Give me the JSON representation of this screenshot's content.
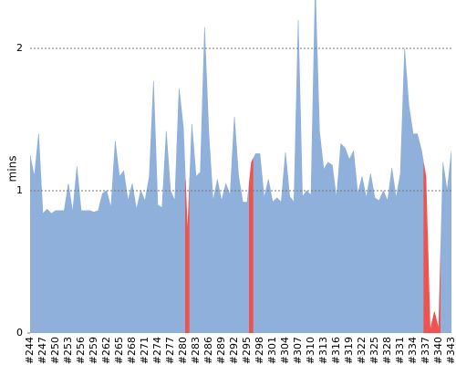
{
  "chart_data": {
    "type": "area",
    "y_label": "mins",
    "categories": [
      "#244",
      null,
      null,
      "#247",
      null,
      null,
      "#250",
      null,
      null,
      "#253",
      null,
      null,
      "#256",
      null,
      null,
      "#259",
      null,
      null,
      "#262",
      null,
      null,
      "#265",
      null,
      null,
      "#268",
      null,
      null,
      "#271",
      null,
      null,
      "#274",
      null,
      null,
      "#277",
      null,
      null,
      "#280",
      null,
      null,
      "#283",
      null,
      null,
      "#286",
      null,
      null,
      "#289",
      null,
      null,
      "#292",
      null,
      null,
      "#295",
      null,
      null,
      "#298",
      null,
      null,
      "#301",
      null,
      null,
      "#304",
      null,
      null,
      "#307",
      null,
      null,
      "#310",
      null,
      null,
      "#313",
      null,
      null,
      "#316",
      null,
      null,
      "#319",
      null,
      null,
      "#322",
      null,
      null,
      "#325",
      null,
      null,
      "#328",
      null,
      null,
      "#331",
      null,
      null,
      "#334",
      null,
      null,
      "#337",
      null,
      null,
      "#340",
      null,
      null,
      "#343"
    ],
    "values": [
      1.25,
      1.1,
      1.4,
      0.84,
      0.87,
      0.84,
      0.86,
      0.86,
      0.86,
      1.05,
      0.85,
      1.17,
      0.86,
      0.86,
      0.86,
      0.85,
      0.86,
      0.98,
      1.0,
      0.88,
      1.35,
      1.1,
      1.14,
      0.93,
      1.05,
      0.87,
      1.0,
      0.93,
      1.1,
      1.77,
      0.9,
      0.88,
      1.42,
      1.0,
      0.93,
      1.72,
      1.45,
      0.7,
      1.47,
      1.1,
      1.13,
      2.15,
      1.4,
      0.93,
      1.08,
      0.93,
      1.05,
      0.97,
      1.52,
      1.1,
      0.92,
      0.92,
      1.2,
      1.26,
      1.26,
      0.95,
      1.08,
      0.92,
      0.95,
      0.92,
      1.27,
      0.96,
      0.92,
      2.2,
      0.96,
      1.0,
      0.97,
      2.45,
      1.42,
      1.15,
      1.2,
      1.18,
      0.95,
      1.33,
      1.3,
      1.22,
      1.28,
      0.98,
      1.1,
      0.95,
      1.12,
      0.95,
      0.93,
      1.0,
      0.93,
      1.16,
      0.95,
      1.12,
      2.0,
      1.6,
      1.4,
      1.4,
      1.28,
      1.1,
      0.02,
      0.15,
      0.03,
      1.2,
      1.0,
      1.28
    ],
    "colors": [
      "#8fb0da",
      "#8fb0da",
      "#8fb0da",
      "#8fb0da",
      "#8fb0da",
      "#8fb0da",
      "#8fb0da",
      "#8fb0da",
      "#8fb0da",
      "#8fb0da",
      "#8fb0da",
      "#8fb0da",
      "#8fb0da",
      "#8fb0da",
      "#8fb0da",
      "#8fb0da",
      "#8fb0da",
      "#8fb0da",
      "#8fb0da",
      "#8fb0da",
      "#8fb0da",
      "#8fb0da",
      "#8fb0da",
      "#8fb0da",
      "#8fb0da",
      "#8fb0da",
      "#8fb0da",
      "#8fb0da",
      "#8fb0da",
      "#8fb0da",
      "#8fb0da",
      "#8fb0da",
      "#8fb0da",
      "#8fb0da",
      "#8fb0da",
      "#8fb0da",
      "#8fb0da",
      "#ef5350",
      "#8fb0da",
      "#8fb0da",
      "#8fb0da",
      "#8fb0da",
      "#8fb0da",
      "#8fb0da",
      "#8fb0da",
      "#8fb0da",
      "#8fb0da",
      "#8fb0da",
      "#8fb0da",
      "#8fb0da",
      "#8fb0da",
      "#8fb0da",
      "#ef5350",
      "#8fb0da",
      "#8fb0da",
      "#8fb0da",
      "#8fb0da",
      "#8fb0da",
      "#8fb0da",
      "#8fb0da",
      "#8fb0da",
      "#8fb0da",
      "#8fb0da",
      "#8fb0da",
      "#8fb0da",
      "#8fb0da",
      "#8fb0da",
      "#8fb0da",
      "#8fb0da",
      "#8fb0da",
      "#8fb0da",
      "#8fb0da",
      "#8fb0da",
      "#8fb0da",
      "#8fb0da",
      "#8fb0da",
      "#8fb0da",
      "#8fb0da",
      "#8fb0da",
      "#8fb0da",
      "#8fb0da",
      "#8fb0da",
      "#8fb0da",
      "#8fb0da",
      "#8fb0da",
      "#8fb0da",
      "#8fb0da",
      "#8fb0da",
      "#8fb0da",
      "#8fb0da",
      "#8fb0da",
      "#8fb0da",
      "#8fb0da",
      "#ef5350",
      "#ef5350",
      "#ef5350",
      "#ef5350",
      "#8fb0da",
      "#8fb0da",
      "#8fb0da"
    ],
    "ylim": [
      0,
      2.34
    ],
    "yticks": [
      0,
      1,
      2
    ],
    "grid": true
  }
}
